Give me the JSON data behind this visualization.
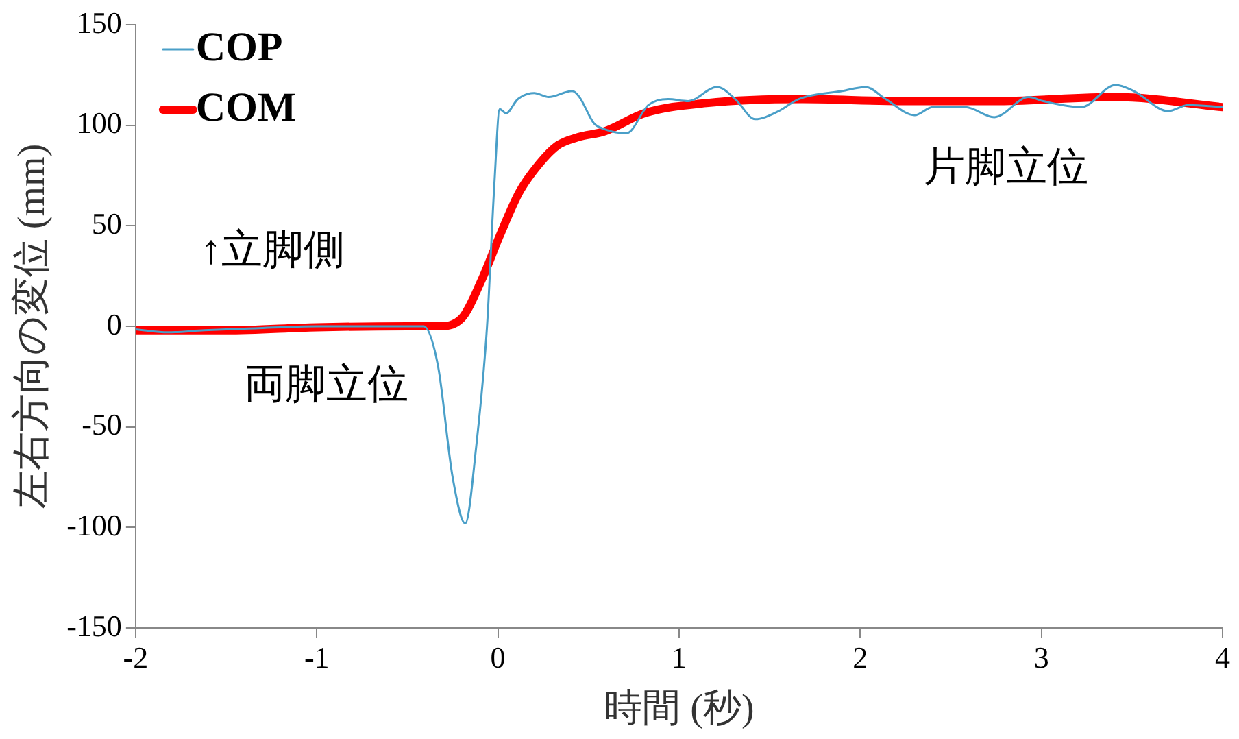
{
  "chart_data": {
    "type": "line",
    "xlabel": "時間 (秒)",
    "ylabel": "左右方向の変位 (mm)",
    "xlim": [
      -2,
      4
    ],
    "xticks": [
      -2,
      -1,
      0,
      1,
      2,
      3,
      4
    ],
    "ylim": [
      -150,
      150
    ],
    "yticks": [
      -150,
      -100,
      -50,
      0,
      50,
      100,
      150
    ],
    "grid": false,
    "legend": "top left",
    "marker": "none",
    "line_style": "solid",
    "series": [
      {
        "name": "COP",
        "color": "#4a9fc8",
        "x": [
          -2,
          -1.82,
          -1.62,
          -1.34,
          -1,
          -0.6,
          -0.41,
          -0.33,
          -0.25,
          -0.18,
          -0.12,
          -0.06,
          -0.02,
          0.01,
          0.045,
          0.11,
          0.2,
          0.28,
          0.41,
          0.45,
          0.53,
          0.59,
          0.71,
          0.83,
          0.94,
          1.05,
          1.21,
          1.31,
          1.42,
          1.55,
          1.66,
          1.9,
          2.03,
          2.14,
          2.3,
          2.4,
          2.58,
          2.74,
          2.93,
          3.01,
          3.22,
          3.41,
          3.51,
          3.7,
          3.81,
          4
        ],
        "values": [
          -1.5,
          -3,
          -2,
          -1,
          0,
          0,
          0,
          -20,
          -75,
          -98,
          -60,
          0,
          70,
          108,
          106,
          113,
          116,
          114,
          117,
          114,
          101,
          98,
          96,
          110,
          113,
          112,
          119,
          113,
          103,
          107,
          113,
          117,
          119,
          113,
          105,
          109,
          109,
          104,
          114,
          112,
          109,
          120,
          117,
          107,
          110,
          109
        ]
      },
      {
        "name": "COM",
        "color": "#ff0000",
        "x": [
          -2,
          -1.5,
          -1,
          -0.5,
          -0.33,
          -0.2,
          -0.09,
          0.01,
          0.12,
          0.23,
          0.33,
          0.44,
          0.59,
          0.81,
          1.15,
          1.68,
          2.22,
          2.74,
          3.41,
          4
        ],
        "values": [
          -2,
          -2,
          -0.5,
          0,
          0,
          4,
          23,
          45,
          67,
          81,
          90,
          94,
          97,
          106,
          111,
          113,
          112,
          112,
          114,
          109
        ]
      }
    ],
    "annotations": [
      "↑立脚側",
      "両脚立位",
      "片脚立位"
    ]
  }
}
